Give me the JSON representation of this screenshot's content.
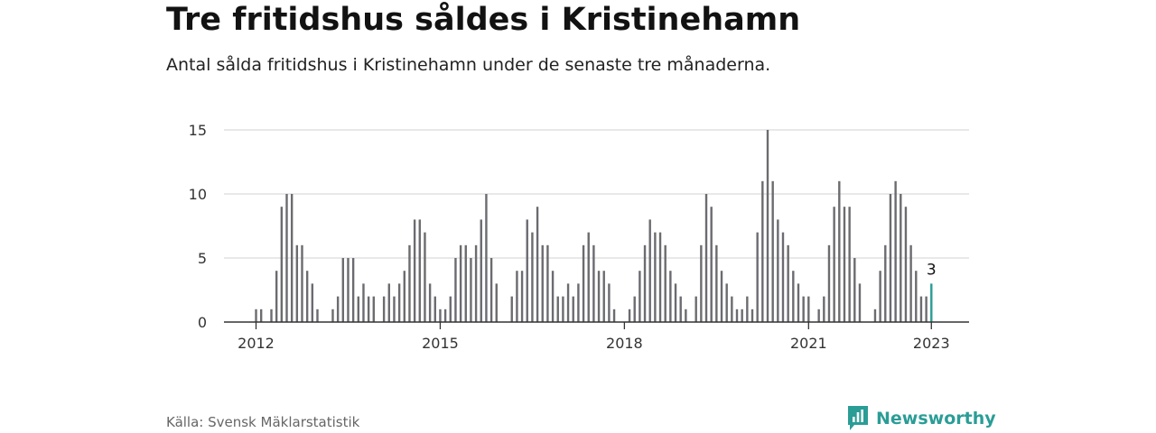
{
  "header": {
    "title": "Tre fritidshus såldes i Kristinehamn",
    "subtitle": "Antal sålda fritidshus i Kristinehamn under de senaste tre månaderna."
  },
  "footer": {
    "source": "Källa: Svensk Mäklarstatistik",
    "brand": "Newsworthy",
    "brand_icon": "newsworthy-logo-icon"
  },
  "colors": {
    "bar": "#6b6b70",
    "highlight": "#2a9d96",
    "grid": "#d9d9d9",
    "axis": "#333333"
  },
  "chart_data": {
    "type": "bar",
    "ylim": [
      0,
      15
    ],
    "yticks": [
      {
        "value": 0,
        "label": "0"
      },
      {
        "value": 5,
        "label": "5"
      },
      {
        "value": 10,
        "label": "10"
      },
      {
        "value": 15,
        "label": "15"
      }
    ],
    "xticks": [
      {
        "value": "2012-01",
        "label": "2012"
      },
      {
        "value": "2015-01",
        "label": "2015"
      },
      {
        "value": "2018-01",
        "label": "2018"
      },
      {
        "value": "2021-01",
        "label": "2021"
      },
      {
        "value": "2023-01",
        "label": "2023"
      }
    ],
    "grid": true,
    "start": "2012-01",
    "categories": [
      "2012-01",
      "2012-02",
      "2012-03",
      "2012-04",
      "2012-05",
      "2012-06",
      "2012-07",
      "2012-08",
      "2012-09",
      "2012-10",
      "2012-11",
      "2012-12",
      "2013-01",
      "2013-02",
      "2013-03",
      "2013-04",
      "2013-05",
      "2013-06",
      "2013-07",
      "2013-08",
      "2013-09",
      "2013-10",
      "2013-11",
      "2013-12",
      "2014-01",
      "2014-02",
      "2014-03",
      "2014-04",
      "2014-05",
      "2014-06",
      "2014-07",
      "2014-08",
      "2014-09",
      "2014-10",
      "2014-11",
      "2014-12",
      "2015-01",
      "2015-02",
      "2015-03",
      "2015-04",
      "2015-05",
      "2015-06",
      "2015-07",
      "2015-08",
      "2015-09",
      "2015-10",
      "2015-11",
      "2015-12",
      "2016-01",
      "2016-02",
      "2016-03",
      "2016-04",
      "2016-05",
      "2016-06",
      "2016-07",
      "2016-08",
      "2016-09",
      "2016-10",
      "2016-11",
      "2016-12",
      "2017-01",
      "2017-02",
      "2017-03",
      "2017-04",
      "2017-05",
      "2017-06",
      "2017-07",
      "2017-08",
      "2017-09",
      "2017-10",
      "2017-11",
      "2017-12",
      "2018-01",
      "2018-02",
      "2018-03",
      "2018-04",
      "2018-05",
      "2018-06",
      "2018-07",
      "2018-08",
      "2018-09",
      "2018-10",
      "2018-11",
      "2018-12",
      "2019-01",
      "2019-02",
      "2019-03",
      "2019-04",
      "2019-05",
      "2019-06",
      "2019-07",
      "2019-08",
      "2019-09",
      "2019-10",
      "2019-11",
      "2019-12",
      "2020-01",
      "2020-02",
      "2020-03",
      "2020-04",
      "2020-05",
      "2020-06",
      "2020-07",
      "2020-08",
      "2020-09",
      "2020-10",
      "2020-11",
      "2020-12",
      "2021-01",
      "2021-02",
      "2021-03",
      "2021-04",
      "2021-05",
      "2021-06",
      "2021-07",
      "2021-08",
      "2021-09",
      "2021-10",
      "2021-11",
      "2021-12",
      "2022-01",
      "2022-02",
      "2022-03",
      "2022-04",
      "2022-05",
      "2022-06",
      "2022-07",
      "2022-08",
      "2022-09",
      "2022-10",
      "2022-11",
      "2022-12",
      "2023-01"
    ],
    "values": [
      1,
      1,
      0,
      1,
      4,
      9,
      10,
      10,
      6,
      6,
      4,
      3,
      1,
      0,
      0,
      1,
      2,
      5,
      5,
      5,
      2,
      3,
      2,
      2,
      0,
      2,
      3,
      2,
      3,
      4,
      6,
      8,
      8,
      7,
      3,
      2,
      1,
      1,
      2,
      5,
      6,
      6,
      5,
      6,
      8,
      10,
      5,
      3,
      0,
      0,
      2,
      4,
      4,
      8,
      7,
      9,
      6,
      6,
      4,
      2,
      2,
      3,
      2,
      3,
      6,
      7,
      6,
      4,
      4,
      3,
      1,
      0,
      0,
      1,
      2,
      4,
      6,
      8,
      7,
      7,
      6,
      4,
      3,
      2,
      1,
      0,
      2,
      6,
      10,
      9,
      6,
      4,
      3,
      2,
      1,
      1,
      2,
      1,
      7,
      11,
      15,
      11,
      8,
      7,
      6,
      4,
      3,
      2,
      2,
      0,
      1,
      2,
      6,
      9,
      11,
      9,
      9,
      5,
      3,
      0,
      0,
      1,
      4,
      6,
      10,
      11,
      10,
      9,
      6,
      4,
      2,
      2,
      3
    ],
    "highlight_index": 132,
    "annotation": {
      "label": "3"
    }
  }
}
